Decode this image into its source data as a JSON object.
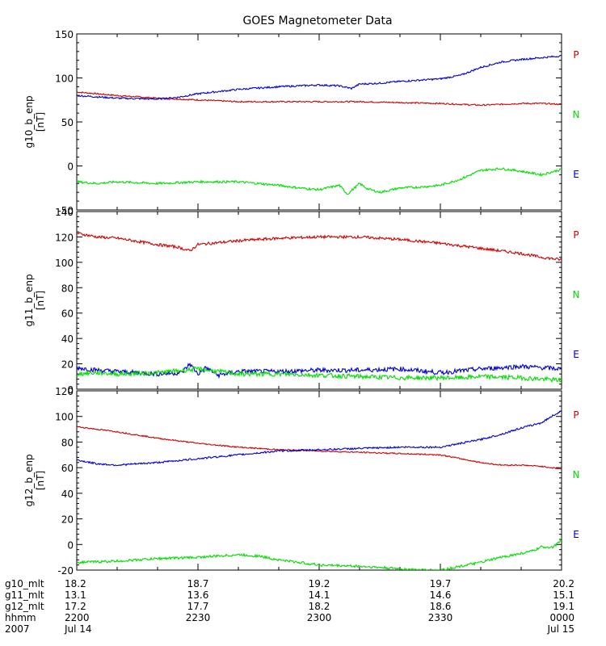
{
  "title": "GOES Magnetometer Data",
  "colors": {
    "P": "#cc0000",
    "N": "#00dd00",
    "E": "#0000cc",
    "axis": "#000000"
  },
  "legend": [
    {
      "key": "P",
      "label": "P",
      "color": "#cc0000"
    },
    {
      "key": "N",
      "label": "N",
      "color": "#00dd00"
    },
    {
      "key": "E",
      "label": "E",
      "color": "#0000cc"
    }
  ],
  "chart_data": [
    {
      "type": "line",
      "ylabel": "g10_b_enp",
      "yunit": "[nT]",
      "ylim": [
        -50,
        150
      ],
      "yticks": [
        -50,
        0,
        50,
        100,
        150
      ],
      "yticklabels": [
        "-50",
        "0",
        "50",
        "100",
        "150"
      ],
      "xlim": [
        0,
        120
      ],
      "series": [
        {
          "name": "P",
          "color": "#cc0000",
          "noise": 0.8,
          "x": [
            0,
            10,
            20,
            30,
            40,
            50,
            60,
            70,
            80,
            90,
            100,
            105,
            110,
            115,
            120
          ],
          "y": [
            84,
            80,
            77,
            75,
            73,
            73,
            73,
            73,
            72,
            71,
            69,
            70,
            71,
            71,
            70
          ]
        },
        {
          "name": "E",
          "color": "#0000cc",
          "noise": 1.0,
          "x": [
            0,
            10,
            20,
            25,
            30,
            40,
            50,
            60,
            65,
            68,
            70,
            75,
            80,
            90,
            95,
            100,
            105,
            110,
            115,
            120
          ],
          "y": [
            80,
            77,
            76,
            78,
            82,
            87,
            90,
            92,
            91,
            88,
            93,
            94,
            96,
            99,
            103,
            112,
            118,
            121,
            123,
            125
          ]
        },
        {
          "name": "N",
          "color": "#00dd00",
          "noise": 1.3,
          "x": [
            0,
            5,
            10,
            20,
            30,
            40,
            50,
            55,
            60,
            65,
            67,
            70,
            72,
            75,
            80,
            85,
            90,
            95,
            100,
            105,
            110,
            115,
            120
          ],
          "y": [
            -18,
            -20,
            -18,
            -20,
            -18,
            -18,
            -22,
            -25,
            -27,
            -22,
            -32,
            -20,
            -26,
            -30,
            -25,
            -24,
            -22,
            -15,
            -5,
            -3,
            -6,
            -10,
            -4
          ]
        }
      ]
    },
    {
      "type": "line",
      "ylabel": "g11_b_enp",
      "yunit": "[nT]",
      "ylim": [
        0,
        140
      ],
      "yticks": [
        0,
        20,
        40,
        60,
        80,
        100,
        120,
        140
      ],
      "yticklabels": [
        "0",
        "20",
        "40",
        "60",
        "80",
        "100",
        "120",
        "140"
      ],
      "xlim": [
        0,
        120
      ],
      "series": [
        {
          "name": "P",
          "color": "#cc0000",
          "noise": 1.1,
          "x": [
            0,
            5,
            10,
            20,
            25,
            28,
            30,
            40,
            50,
            60,
            70,
            80,
            90,
            100,
            110,
            115,
            120
          ],
          "y": [
            123,
            120,
            119,
            114,
            112,
            109,
            114,
            117,
            119,
            120,
            120,
            118,
            115,
            111,
            107,
            104,
            102
          ]
        },
        {
          "name": "E",
          "color": "#0000cc",
          "noise": 1.8,
          "x": [
            0,
            5,
            10,
            20,
            26,
            28,
            30,
            32,
            35,
            40,
            50,
            60,
            70,
            80,
            90,
            100,
            110,
            120
          ],
          "y": [
            17,
            15,
            14,
            12,
            13,
            20,
            12,
            17,
            11,
            14,
            14,
            15,
            15,
            16,
            13,
            16,
            18,
            16
          ]
        },
        {
          "name": "N",
          "color": "#00dd00",
          "noise": 1.8,
          "x": [
            0,
            5,
            10,
            20,
            30,
            40,
            50,
            60,
            70,
            80,
            90,
            95,
            100,
            110,
            120
          ],
          "y": [
            12,
            13,
            12,
            13,
            16,
            12,
            12,
            11,
            10,
            9,
            9,
            9,
            10,
            9,
            7
          ]
        }
      ]
    },
    {
      "type": "line",
      "ylabel": "g12_b_enp",
      "yunit": "[nT]",
      "ylim": [
        -20,
        120
      ],
      "yticks": [
        -20,
        0,
        20,
        40,
        60,
        80,
        100,
        120
      ],
      "yticklabels": [
        "-20",
        "0",
        "20",
        "40",
        "60",
        "80",
        "100",
        "120"
      ],
      "xlim": [
        0,
        120
      ],
      "series": [
        {
          "name": "P",
          "color": "#cc0000",
          "noise": 0.5,
          "x": [
            0,
            10,
            20,
            30,
            40,
            50,
            60,
            70,
            80,
            90,
            95,
            100,
            105,
            110,
            115,
            120
          ],
          "y": [
            92,
            88,
            83,
            79,
            76,
            74,
            73,
            72,
            71,
            70,
            67,
            64,
            62,
            62,
            61,
            59
          ]
        },
        {
          "name": "E",
          "color": "#0000cc",
          "noise": 0.7,
          "x": [
            0,
            5,
            10,
            20,
            30,
            40,
            50,
            60,
            70,
            80,
            85,
            90,
            95,
            100,
            105,
            110,
            115,
            118,
            120
          ],
          "y": [
            66,
            63,
            62,
            64,
            67,
            70,
            73,
            74,
            75,
            76,
            76,
            76,
            79,
            82,
            86,
            91,
            95,
            101,
            104
          ]
        },
        {
          "name": "N",
          "color": "#00dd00",
          "noise": 1.0,
          "x": [
            0,
            10,
            20,
            30,
            35,
            40,
            45,
            50,
            60,
            70,
            75,
            80,
            85,
            90,
            95,
            100,
            105,
            110,
            113,
            115,
            118,
            120
          ],
          "y": [
            -14,
            -13,
            -11,
            -10,
            -9,
            -8,
            -9,
            -12,
            -16,
            -17,
            -18,
            -19,
            -20,
            -20,
            -17,
            -14,
            -10,
            -7,
            -5,
            -2,
            -2,
            4
          ]
        }
      ]
    }
  ],
  "x_axis": {
    "tick_minutes": [
      0,
      30,
      60,
      90,
      120
    ],
    "rows": [
      {
        "label": "g10_mlt",
        "values": [
          "18.2",
          "18.7",
          "19.2",
          "19.7",
          "20.2"
        ]
      },
      {
        "label": "g11_mlt",
        "values": [
          "13.1",
          "13.6",
          "14.1",
          "14.6",
          "15.1"
        ]
      },
      {
        "label": "g12_mlt",
        "values": [
          "17.2",
          "17.7",
          "18.2",
          "18.6",
          "19.1"
        ]
      },
      {
        "label": "hhmm",
        "values": [
          "2200",
          "2230",
          "2300",
          "2330",
          "0000"
        ]
      },
      {
        "label": "2007",
        "values": [
          "Jul 14",
          "",
          "",
          "",
          "Jul 15"
        ]
      }
    ]
  }
}
